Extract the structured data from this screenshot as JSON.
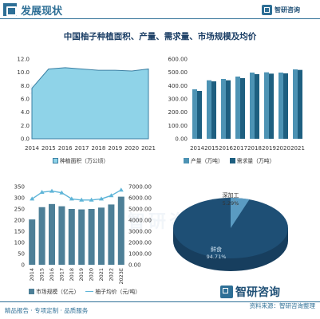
{
  "header": {
    "title": "发展现状",
    "logo_text": "智研咨询"
  },
  "main_title": "中国柚子种植面积、产量、需求量、市场规模及均价",
  "footer": {
    "left": "精品报告 · 专项定制 · 品质服务",
    "source": "资料来源：智研咨询整理",
    "logo_text": "智研咨询"
  },
  "watermark": "智研咨询",
  "colors": {
    "accent": "#2e6f96",
    "area_fill": "#8fd3e8",
    "area_line": "#3a7fa3",
    "bar_light": "#4d93b4",
    "bar_dark": "#1e5f80",
    "pie_dark": "#1e4f75",
    "pie_light": "#5a9bc2"
  },
  "chart_data": [
    {
      "type": "area",
      "x": [
        "2014",
        "2015",
        "2016",
        "2017",
        "2018",
        "2019",
        "2020",
        "2021"
      ],
      "series": [
        {
          "name": "种植面积（万公顷）",
          "values": [
            7.6,
            10.5,
            10.7,
            10.5,
            10.3,
            10.3,
            10.2,
            10.5
          ]
        }
      ],
      "yticks": [
        "0.0",
        "2.0",
        "4.0",
        "6.0",
        "8.0",
        "10.0",
        "12.0"
      ],
      "ylim": [
        0,
        12
      ]
    },
    {
      "type": "bar",
      "categories": [
        "2014",
        "2015",
        "2016",
        "2017",
        "2018",
        "2019",
        "2020",
        "2021"
      ],
      "series": [
        {
          "name": "产量（万吨）",
          "values": [
            372,
            440,
            450,
            468,
            498,
            500,
            498,
            522
          ]
        },
        {
          "name": "需求量（万吨）",
          "values": [
            360,
            432,
            440,
            456,
            486,
            490,
            492,
            518
          ]
        }
      ],
      "yticks": [
        "0.00",
        "100.00",
        "200.00",
        "300.00",
        "400.00",
        "500.00",
        "600.00"
      ],
      "ylim": [
        0,
        600
      ]
    },
    {
      "type": "bar",
      "categories": [
        "2014",
        "2015",
        "2016",
        "2017",
        "2018",
        "2019",
        "2020",
        "2021",
        "2022",
        "2023E"
      ],
      "series": [
        {
          "name": "市场规模（亿元）",
          "values": [
            203,
            258,
            272,
            262,
            250,
            248,
            250,
            256,
            270,
            305
          ]
        },
        {
          "name": "柚子均价（元/吨）",
          "values": [
            5900,
            6500,
            6600,
            6450,
            5900,
            5800,
            5800,
            5900,
            6200,
            6700
          ]
        }
      ],
      "yticks_left": [
        "0",
        "50",
        "100",
        "150",
        "200",
        "250",
        "300",
        "350"
      ],
      "ylim_left": [
        0,
        350
      ],
      "yticks_right": [
        "0.00",
        "1000.00",
        "2000.00",
        "3000.00",
        "4000.00",
        "5000.00",
        "6000.00",
        "7000.00"
      ],
      "ylim_right": [
        0,
        7000
      ]
    },
    {
      "type": "pie",
      "slices": [
        {
          "label": "鲜食",
          "value": 94.71,
          "text": "94.71%"
        },
        {
          "label": "深加工",
          "value": 5.29,
          "text": "5.29%"
        }
      ]
    }
  ]
}
